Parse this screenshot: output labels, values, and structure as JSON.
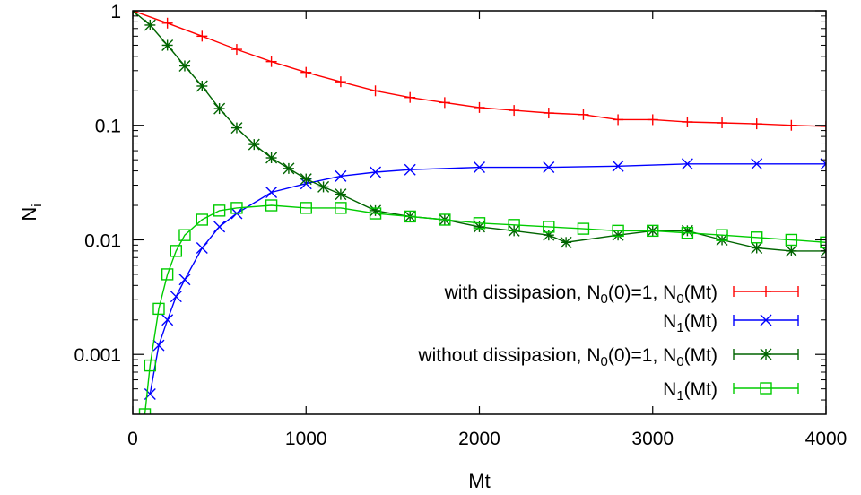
{
  "chart_data": {
    "type": "line",
    "title": "",
    "xlabel": "Mt",
    "ylabel": "N",
    "ylabel_sub": "i",
    "xlim": [
      0,
      4000
    ],
    "ylim": [
      0.0003,
      1
    ],
    "yscale": "log",
    "grid": false,
    "legend_position": "bottom-right",
    "xticks": [
      {
        "value": 0,
        "label": "0"
      },
      {
        "value": 1000,
        "label": "1000"
      },
      {
        "value": 2000,
        "label": "2000"
      },
      {
        "value": 3000,
        "label": "3000"
      },
      {
        "value": 4000,
        "label": "4000"
      }
    ],
    "yticks": [
      {
        "value": 1,
        "label": "1"
      },
      {
        "value": 0.1,
        "label": "0.1"
      },
      {
        "value": 0.01,
        "label": "0.01"
      },
      {
        "value": 0.001,
        "label": "0.001"
      }
    ],
    "series": [
      {
        "legend_parts": [
          [
            "with dissipasion, N",
            ""
          ],
          [
            "0",
            "sub"
          ],
          [
            "(0)=1, N",
            ""
          ],
          [
            "0",
            "sub"
          ],
          [
            "(Mt)",
            ""
          ]
        ],
        "color": "#ff0000",
        "marker": "plus",
        "x": [
          0,
          200,
          400,
          600,
          800,
          1000,
          1200,
          1400,
          1600,
          1800,
          2000,
          2200,
          2400,
          2600,
          2800,
          3000,
          3200,
          3400,
          3600,
          3800,
          4000
        ],
        "y": [
          1.0,
          0.78,
          0.6,
          0.46,
          0.36,
          0.29,
          0.24,
          0.2,
          0.175,
          0.158,
          0.143,
          0.135,
          0.128,
          0.124,
          0.112,
          0.112,
          0.107,
          0.105,
          0.103,
          0.1,
          0.098
        ]
      },
      {
        "legend_parts": [
          [
            "N",
            ""
          ],
          [
            "1",
            "sub"
          ],
          [
            "(Mt)",
            ""
          ]
        ],
        "color": "#0000ff",
        "marker": "cross",
        "x": [
          100,
          150,
          200,
          250,
          300,
          400,
          500,
          600,
          800,
          1000,
          1200,
          1400,
          1600,
          2000,
          2400,
          2800,
          3200,
          3600,
          4000
        ],
        "y": [
          0.00045,
          0.0012,
          0.002,
          0.0032,
          0.0045,
          0.0085,
          0.013,
          0.017,
          0.026,
          0.031,
          0.036,
          0.039,
          0.041,
          0.043,
          0.043,
          0.044,
          0.046,
          0.046,
          0.046
        ]
      },
      {
        "legend_parts": [
          [
            "without dissipasion, N",
            ""
          ],
          [
            "0",
            "sub"
          ],
          [
            "(0)=1, N",
            ""
          ],
          [
            "0",
            "sub"
          ],
          [
            "(Mt)",
            ""
          ]
        ],
        "color": "#006400",
        "marker": "star",
        "x": [
          0,
          100,
          200,
          300,
          400,
          500,
          600,
          700,
          800,
          900,
          1000,
          1100,
          1200,
          1400,
          1600,
          1800,
          2000,
          2200,
          2400,
          2500,
          2800,
          3000,
          3200,
          3400,
          3600,
          3800,
          4000
        ],
        "y": [
          1.0,
          0.75,
          0.5,
          0.33,
          0.22,
          0.14,
          0.095,
          0.068,
          0.052,
          0.042,
          0.034,
          0.029,
          0.025,
          0.018,
          0.016,
          0.015,
          0.013,
          0.012,
          0.011,
          0.0095,
          0.011,
          0.012,
          0.012,
          0.01,
          0.0085,
          0.008,
          0.008
        ]
      },
      {
        "legend_parts": [
          [
            "N",
            ""
          ],
          [
            "1",
            "sub"
          ],
          [
            "(Mt)",
            ""
          ]
        ],
        "color": "#00cc00",
        "marker": "square",
        "x": [
          70,
          100,
          150,
          200,
          250,
          300,
          400,
          500,
          600,
          800,
          1000,
          1200,
          1400,
          1600,
          1800,
          2000,
          2200,
          2400,
          2600,
          2800,
          3000,
          3200,
          3400,
          3600,
          3800,
          4000
        ],
        "y": [
          0.0003,
          0.0008,
          0.0025,
          0.005,
          0.008,
          0.011,
          0.015,
          0.018,
          0.019,
          0.02,
          0.019,
          0.019,
          0.017,
          0.016,
          0.015,
          0.014,
          0.0135,
          0.013,
          0.0125,
          0.012,
          0.012,
          0.0115,
          0.011,
          0.0105,
          0.01,
          0.0095
        ]
      }
    ]
  }
}
